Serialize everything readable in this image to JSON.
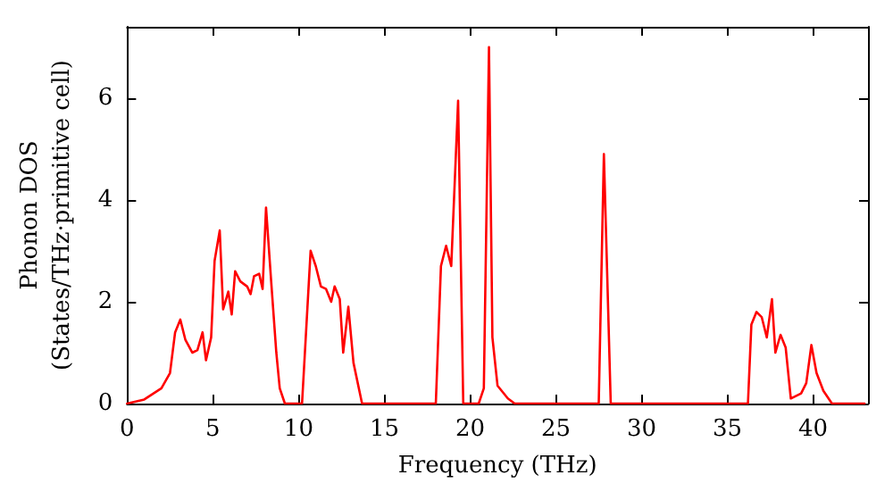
{
  "chart_data": {
    "type": "line",
    "xlabel": "Frequency (THz)",
    "ylabel": "Phonon DOS\n(States/THz·primitive cell)",
    "series": [
      {
        "color": "#ff0000",
        "x": [
          0,
          1,
          2,
          2.5,
          2.8,
          3.1,
          3.4,
          3.8,
          4.1,
          4.4,
          4.6,
          4.9,
          5.1,
          5.4,
          5.6,
          5.9,
          6.1,
          6.3,
          6.6,
          7.0,
          7.2,
          7.4,
          7.7,
          7.9,
          8.1,
          8.4,
          8.7,
          8.9,
          9.2,
          10.2,
          10.7,
          11.0,
          11.3,
          11.6,
          11.9,
          12.1,
          12.4,
          12.6,
          12.9,
          13.2,
          13.7,
          18.0,
          18.3,
          18.6,
          18.9,
          19.3,
          19.6,
          20.5,
          20.8,
          21.1,
          21.3,
          21.6,
          22.2,
          22.6,
          27.5,
          27.8,
          28.2,
          36.2,
          36.4,
          36.7,
          37.0,
          37.3,
          37.6,
          37.8,
          38.1,
          38.4,
          38.7,
          39.3,
          39.6,
          39.9,
          40.2,
          40.6,
          41.1,
          43
        ],
        "values": [
          0,
          0.08,
          0.3,
          0.6,
          1.4,
          1.65,
          1.25,
          1.0,
          1.05,
          1.4,
          0.85,
          1.3,
          2.8,
          3.4,
          1.85,
          2.2,
          1.75,
          2.6,
          2.4,
          2.3,
          2.15,
          2.5,
          2.55,
          2.25,
          3.85,
          2.4,
          1.0,
          0.3,
          0,
          0,
          3.0,
          2.7,
          2.3,
          2.25,
          2.0,
          2.3,
          2.05,
          1.0,
          1.9,
          0.8,
          0,
          0,
          2.7,
          3.1,
          2.7,
          5.95,
          0,
          0,
          0.3,
          7.0,
          1.3,
          0.35,
          0.1,
          0,
          0,
          4.9,
          0,
          0,
          1.55,
          1.8,
          1.7,
          1.3,
          2.05,
          1.0,
          1.35,
          1.1,
          0.1,
          0.2,
          0.4,
          1.15,
          0.6,
          0.25,
          0,
          0
        ]
      }
    ],
    "xlim": [
      0,
      43.2
    ],
    "xticks": [
      0,
      5,
      10,
      15,
      20,
      25,
      30,
      35,
      40
    ],
    "ylim": [
      0,
      7.4
    ],
    "yticks": [
      0,
      2,
      4,
      6
    ],
    "grid": false,
    "marker": "none",
    "line_style": "solid"
  }
}
